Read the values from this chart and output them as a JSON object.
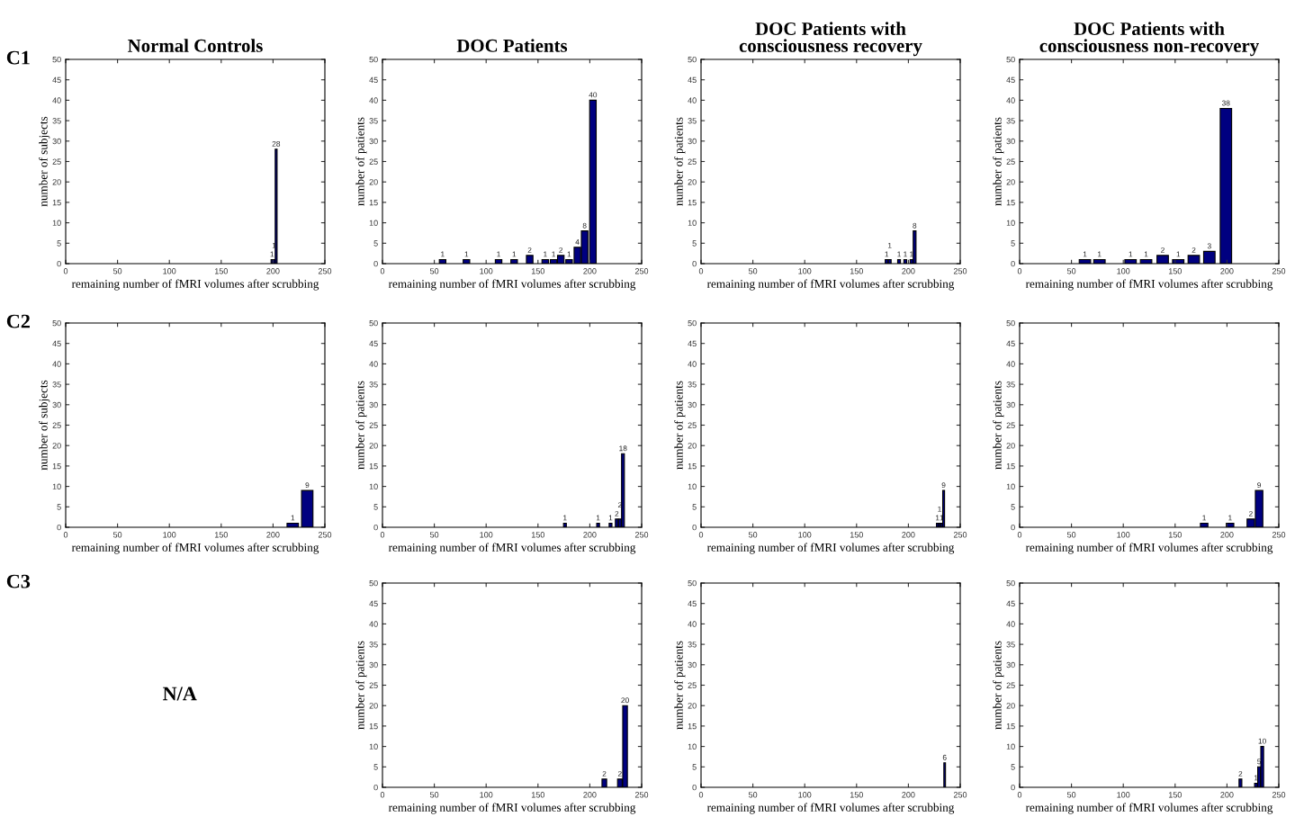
{
  "chart_data": [
    {
      "type": "bar",
      "title": "Normal Controls",
      "annotations": [
        "C1"
      ],
      "xlabel": "remaining number of fMRI volumes after scrubbing",
      "ylabel": "number of subjects",
      "x": [
        199,
        201,
        203
      ],
      "values": [
        1,
        1,
        28
      ],
      "color": "#000080",
      "xlim": [
        0,
        250
      ],
      "xticks": [
        0,
        50,
        100,
        150,
        200,
        250
      ],
      "ylim": [
        0,
        50
      ],
      "yticks": [
        0,
        5,
        10,
        15,
        20,
        25,
        30,
        35,
        40,
        45,
        50
      ],
      "data_labels": true
    },
    {
      "type": "bar",
      "title": "DOC Patients",
      "xlabel": "remaining number of fMRI volumes after scrubbing",
      "ylabel": "number of patients",
      "x": [
        58,
        81,
        112,
        127,
        142,
        157,
        165,
        172,
        180,
        188,
        195,
        203
      ],
      "values": [
        1,
        1,
        1,
        1,
        2,
        1,
        1,
        2,
        1,
        4,
        8,
        40
      ],
      "color": "#000080",
      "xlim": [
        0,
        250
      ],
      "xticks": [
        0,
        50,
        100,
        150,
        200,
        250
      ],
      "ylim": [
        0,
        50
      ],
      "yticks": [
        0,
        5,
        10,
        15,
        20,
        25,
        30,
        35,
        40,
        45,
        50
      ],
      "data_labels": true
    },
    {
      "type": "bar",
      "title": "DOC Patients with\nconsciousness recovery",
      "xlabel": "remaining number of fMRI volumes after scrubbing",
      "ylabel": "number of patients",
      "x": [
        179,
        182,
        191,
        197,
        203,
        206
      ],
      "values": [
        1,
        1,
        1,
        1,
        1,
        8
      ],
      "color": "#000080",
      "xlim": [
        0,
        250
      ],
      "xticks": [
        0,
        50,
        100,
        150,
        200,
        250
      ],
      "ylim": [
        0,
        50
      ],
      "yticks": [
        0,
        5,
        10,
        15,
        20,
        25,
        30,
        35,
        40,
        45,
        50
      ],
      "data_labels": true
    },
    {
      "type": "bar",
      "title": "DOC Patients with\nconsciousness non-recovery",
      "xlabel": "remaining number of fMRI volumes after scrubbing",
      "ylabel": "number of patients",
      "x": [
        63,
        77,
        107,
        122,
        138,
        153,
        168,
        183,
        199
      ],
      "values": [
        1,
        1,
        1,
        1,
        2,
        1,
        2,
        3,
        38
      ],
      "color": "#000080",
      "xlim": [
        0,
        250
      ],
      "xticks": [
        0,
        50,
        100,
        150,
        200,
        250
      ],
      "ylim": [
        0,
        50
      ],
      "yticks": [
        0,
        5,
        10,
        15,
        20,
        25,
        30,
        35,
        40,
        45,
        50
      ],
      "data_labels": true
    },
    {
      "type": "bar",
      "annotations": [
        "C2"
      ],
      "xlabel": "remaining number of fMRI volumes after scrubbing",
      "ylabel": "number of subjects",
      "x": [
        219,
        233
      ],
      "values": [
        1,
        9
      ],
      "color": "#000080",
      "xlim": [
        0,
        250
      ],
      "xticks": [
        0,
        50,
        100,
        150,
        200,
        250
      ],
      "ylim": [
        0,
        50
      ],
      "yticks": [
        0,
        5,
        10,
        15,
        20,
        25,
        30,
        35,
        40,
        45,
        50
      ],
      "data_labels": true
    },
    {
      "type": "bar",
      "xlabel": "remaining number of fMRI volumes after scrubbing",
      "ylabel": "number of patients",
      "x": [
        176,
        208,
        220,
        226,
        229,
        232
      ],
      "values": [
        1,
        1,
        1,
        2,
        2,
        18
      ],
      "color": "#000080",
      "xlim": [
        0,
        250
      ],
      "xticks": [
        0,
        50,
        100,
        150,
        200,
        250
      ],
      "ylim": [
        0,
        50
      ],
      "yticks": [
        0,
        5,
        10,
        15,
        20,
        25,
        30,
        35,
        40,
        45,
        50
      ],
      "data_labels": true
    },
    {
      "type": "bar",
      "xlabel": "remaining number of fMRI volumes after scrubbing",
      "ylabel": "number of patients",
      "x": [
        228,
        230,
        232,
        234
      ],
      "values": [
        1,
        1,
        1,
        9
      ],
      "color": "#000080",
      "xlim": [
        0,
        250
      ],
      "xticks": [
        0,
        50,
        100,
        150,
        200,
        250
      ],
      "ylim": [
        0,
        50
      ],
      "yticks": [
        0,
        5,
        10,
        15,
        20,
        25,
        30,
        35,
        40,
        45,
        50
      ],
      "data_labels": true
    },
    {
      "type": "bar",
      "xlabel": "remaining number of fMRI volumes after scrubbing",
      "ylabel": "number of patients",
      "x": [
        178,
        203,
        223,
        231
      ],
      "values": [
        1,
        1,
        2,
        9
      ],
      "color": "#000080",
      "xlim": [
        0,
        250
      ],
      "xticks": [
        0,
        50,
        100,
        150,
        200,
        250
      ],
      "ylim": [
        0,
        50
      ],
      "yticks": [
        0,
        5,
        10,
        15,
        20,
        25,
        30,
        35,
        40,
        45,
        50
      ],
      "data_labels": true
    },
    {
      "type": "other",
      "annotations": [
        "C3",
        "N/A"
      ]
    },
    {
      "type": "bar",
      "xlabel": "remaining number of fMRI volumes after scrubbing",
      "ylabel": "number of patients",
      "x": [
        214,
        229,
        234
      ],
      "values": [
        2,
        2,
        20
      ],
      "color": "#000080",
      "xlim": [
        0,
        250
      ],
      "xticks": [
        0,
        50,
        100,
        150,
        200,
        250
      ],
      "ylim": [
        0,
        50
      ],
      "yticks": [
        0,
        5,
        10,
        15,
        20,
        25,
        30,
        35,
        40,
        45,
        50
      ],
      "data_labels": true
    },
    {
      "type": "bar",
      "xlabel": "remaining number of fMRI volumes after scrubbing",
      "ylabel": "number of patients",
      "x": [
        235
      ],
      "values": [
        6
      ],
      "color": "#000080",
      "xlim": [
        0,
        250
      ],
      "xticks": [
        0,
        50,
        100,
        150,
        200,
        250
      ],
      "ylim": [
        0,
        50
      ],
      "yticks": [
        0,
        5,
        10,
        15,
        20,
        25,
        30,
        35,
        40,
        45,
        50
      ],
      "data_labels": true
    },
    {
      "type": "bar",
      "xlabel": "remaining number of fMRI volumes after scrubbing",
      "ylabel": "number of patients",
      "x": [
        213,
        228,
        231,
        234
      ],
      "values": [
        2,
        1,
        5,
        10
      ],
      "color": "#000080",
      "xlim": [
        0,
        250
      ],
      "xticks": [
        0,
        50,
        100,
        150,
        200,
        250
      ],
      "ylim": [
        0,
        50
      ],
      "yticks": [
        0,
        5,
        10,
        15,
        20,
        25,
        30,
        35,
        40,
        45,
        50
      ],
      "data_labels": true
    }
  ]
}
